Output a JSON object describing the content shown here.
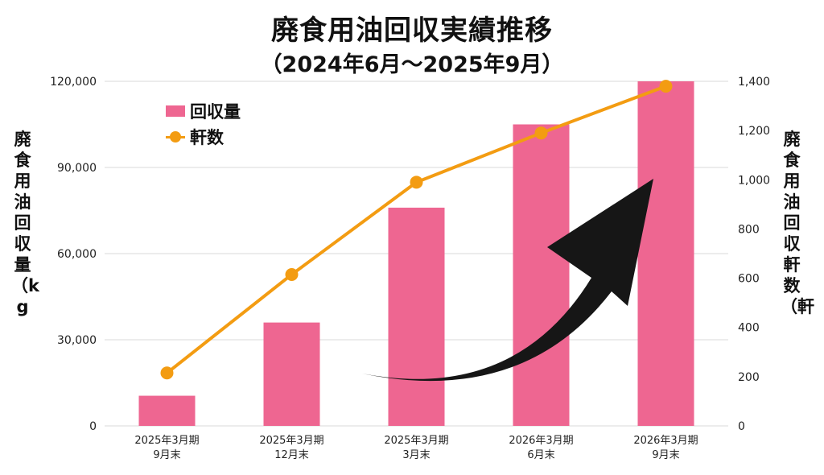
{
  "title": "廃食用油回収実績推移",
  "subtitle": "（2024年6月～2025年9月）",
  "left_axis_label": "廃食用油回収量（kg",
  "right_axis_label": "廃食用油回収軒数（軒",
  "legend": {
    "bar": "回収量",
    "line": "軒数"
  },
  "colors": {
    "bar": "#ee6691",
    "line": "#f39c12",
    "arrow": "#161616",
    "grid": "#d9d9d9"
  },
  "chart_data": {
    "type": "bar",
    "categories": [
      [
        "2025年3月期",
        "9月末"
      ],
      [
        "2025年3月期",
        "12月末"
      ],
      [
        "2025年3月期",
        "3月末"
      ],
      [
        "2026年3月期",
        "6月末"
      ],
      [
        "2026年3月期",
        "9月末"
      ]
    ],
    "series": [
      {
        "name": "回収量",
        "type": "bar",
        "axis": "left",
        "values": [
          10500,
          36000,
          76000,
          105000,
          120000
        ]
      },
      {
        "name": "軒数",
        "type": "line",
        "axis": "right",
        "values": [
          215,
          615,
          990,
          1190,
          1380
        ]
      }
    ],
    "ylim_left": [
      0,
      120000
    ],
    "yticks_left": [
      "0",
      "30,000",
      "60,000",
      "90,000",
      "120,000"
    ],
    "ylim_right": [
      0,
      1400
    ],
    "yticks_right": [
      "0",
      "200",
      "400",
      "600",
      "800",
      "1,000",
      "1,200",
      "1,400"
    ],
    "legend_position": "top-left",
    "grid": true
  }
}
